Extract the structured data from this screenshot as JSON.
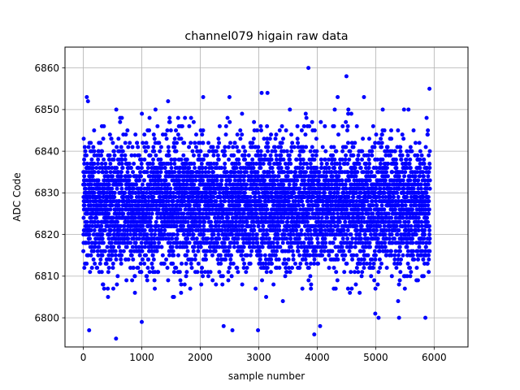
{
  "chart_data": {
    "type": "scatter",
    "title": "channel079 higain raw data",
    "xlabel": "sample number",
    "ylabel": "ADC Code",
    "xlim": [
      -313,
      6579
    ],
    "ylim": [
      6793,
      6865
    ],
    "xticks": [
      0,
      1000,
      2000,
      3000,
      4000,
      5000,
      6000
    ],
    "yticks": [
      6800,
      6810,
      6820,
      6830,
      6840,
      6850,
      6860
    ],
    "grid": true,
    "marker_color": "#0000ff",
    "series": [
      {
        "n_points": 5929,
        "x_range": [
          0,
          5928
        ],
        "y_mean": 6827,
        "y_std": 8,
        "values_min": 6795,
        "values_max": 6860,
        "notable_points": [
          {
            "x": 60,
            "y": 6853
          },
          {
            "x": 80,
            "y": 6852
          },
          {
            "x": 100,
            "y": 6797
          },
          {
            "x": 560,
            "y": 6795
          },
          {
            "x": 1000,
            "y": 6799
          },
          {
            "x": 1450,
            "y": 6852
          },
          {
            "x": 2050,
            "y": 6853
          },
          {
            "x": 2400,
            "y": 6798
          },
          {
            "x": 2500,
            "y": 6853
          },
          {
            "x": 2550,
            "y": 6797
          },
          {
            "x": 3050,
            "y": 6854
          },
          {
            "x": 3150,
            "y": 6854
          },
          {
            "x": 3850,
            "y": 6860
          },
          {
            "x": 3950,
            "y": 6796
          },
          {
            "x": 4050,
            "y": 6798
          },
          {
            "x": 4350,
            "y": 6853
          },
          {
            "x": 4500,
            "y": 6858
          },
          {
            "x": 4800,
            "y": 6853
          },
          {
            "x": 5050,
            "y": 6800
          },
          {
            "x": 5400,
            "y": 6800
          },
          {
            "x": 5850,
            "y": 6800
          },
          {
            "x": 5920,
            "y": 6855
          }
        ]
      }
    ]
  }
}
